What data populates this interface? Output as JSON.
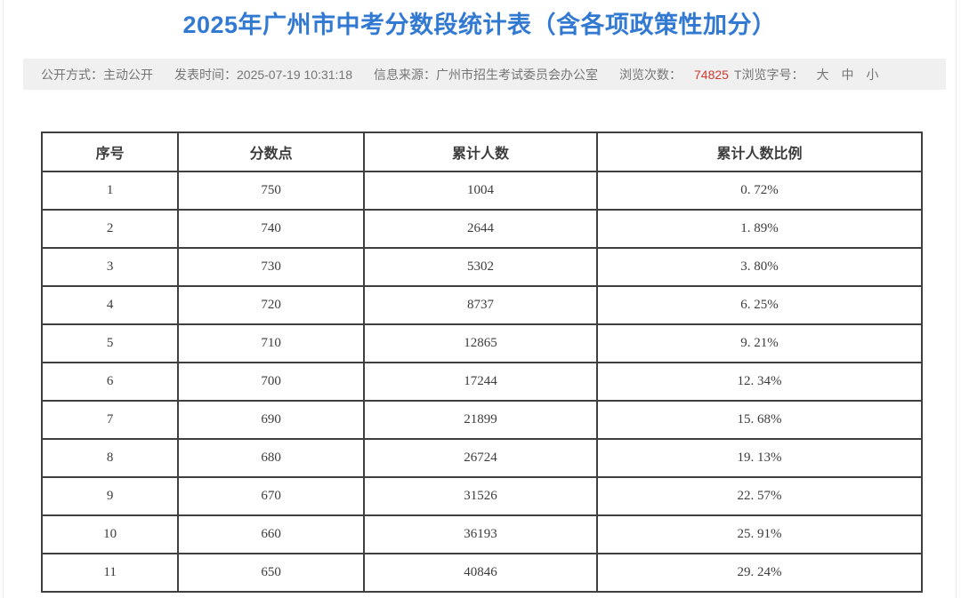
{
  "title": "2025年广州市中考分数段统计表（含各项政策性加分）",
  "meta": {
    "publish_method_label": "公开方式：",
    "publish_method_value": "主动公开",
    "publish_time_label": "发表时间：",
    "publish_time_value": "2025-07-19 10:31:18",
    "source_label": "信息来源：",
    "source_value": "广州市招生考试委员会办公室",
    "views_label": "浏览次数：",
    "views_value": "74825",
    "font_size_label": "T浏览字号：",
    "font_size_options": [
      "大",
      "中",
      "小"
    ]
  },
  "colors": {
    "title_blue": "#3279d2",
    "views_red": "#cc3a30",
    "meta_bar_bg": "#f0f0f1",
    "meta_text_gray": "#757575",
    "table_border": "#3f3f3f",
    "table_text": "#3c3c3c"
  },
  "chart_data": {
    "type": "table",
    "title": "2025年广州市中考分数段统计表（含各项政策性加分）",
    "columns": [
      "序号",
      "分数点",
      "累计人数",
      "累计人数比例"
    ],
    "rows": [
      [
        "1",
        "750",
        "1004",
        "0. 72%"
      ],
      [
        "2",
        "740",
        "2644",
        "1. 89%"
      ],
      [
        "3",
        "730",
        "5302",
        "3. 80%"
      ],
      [
        "4",
        "720",
        "8737",
        "6. 25%"
      ],
      [
        "5",
        "710",
        "12865",
        "9. 21%"
      ],
      [
        "6",
        "700",
        "17244",
        "12. 34%"
      ],
      [
        "7",
        "690",
        "21899",
        "15. 68%"
      ],
      [
        "8",
        "680",
        "26724",
        "19. 13%"
      ],
      [
        "9",
        "670",
        "31526",
        "22. 57%"
      ],
      [
        "10",
        "660",
        "36193",
        "25. 91%"
      ],
      [
        "11",
        "650",
        "40846",
        "29. 24%"
      ]
    ]
  }
}
